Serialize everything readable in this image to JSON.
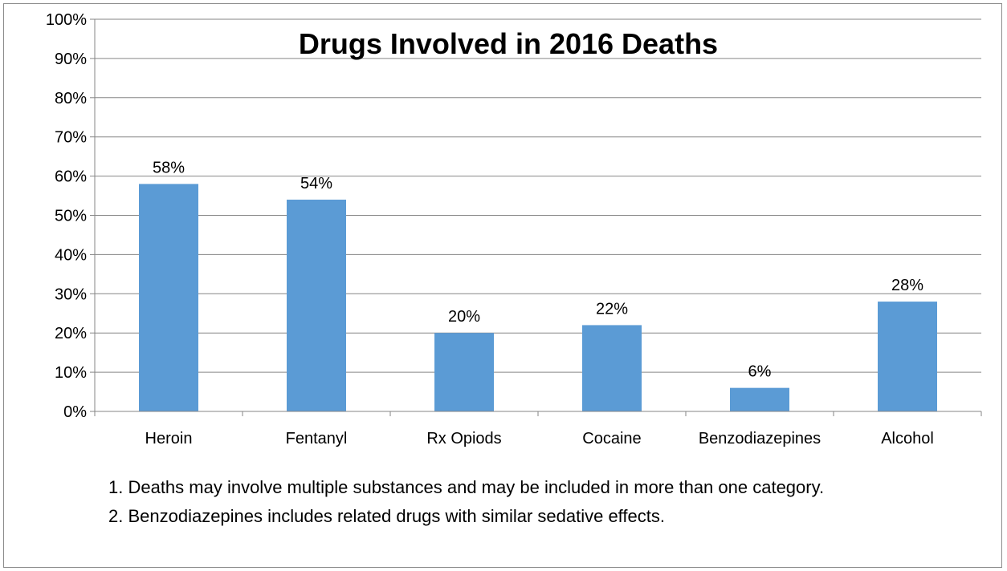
{
  "chart_data": {
    "type": "bar",
    "title": "Drugs Involved in 2016 Deaths",
    "categories": [
      "Heroin",
      "Fentanyl",
      "Rx Opiods",
      "Cocaine",
      "Benzodiazepines",
      "Alcohol"
    ],
    "values": [
      58,
      54,
      20,
      22,
      6,
      28
    ],
    "data_labels": [
      "58%",
      "54%",
      "20%",
      "22%",
      "6%",
      "28%"
    ],
    "y_ticks": [
      "0%",
      "10%",
      "20%",
      "30%",
      "40%",
      "50%",
      "60%",
      "70%",
      "80%",
      "90%",
      "100%"
    ],
    "ylim": [
      0,
      100
    ],
    "xlabel": "",
    "ylabel": "",
    "grid": true,
    "legend": "none",
    "bar_color": "#5B9BD5",
    "gridline_color": "#868686"
  },
  "footnotes": [
    "1. Deaths may involve multiple substances and may be included in more than one category.",
    "2. Benzodiazepines includes related drugs with similar sedative effects."
  ]
}
